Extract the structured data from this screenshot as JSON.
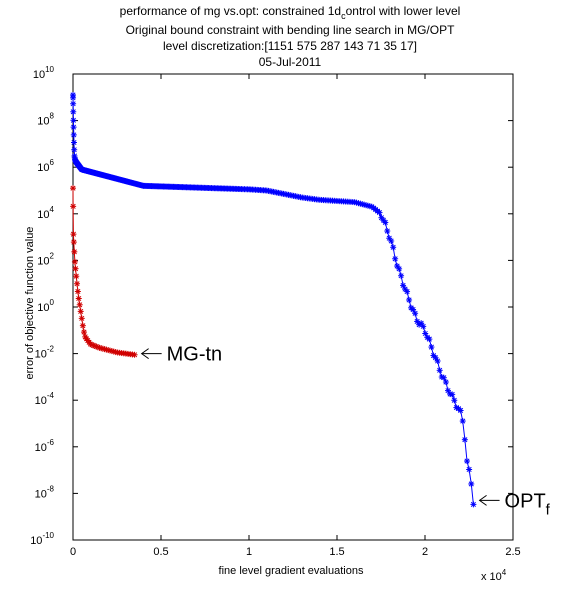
{
  "chart_data": {
    "type": "scatter",
    "title_lines": [
      "performance of mg vs.opt: constrained 1d",
      "Original bound constraint with bending line search in MG/OPT",
      "level discretization:[1151 575 287 143 71 35 17]",
      "05-Jul-2011"
    ],
    "title_sub": "c",
    "title_tail": "ontrol with lower level",
    "xlabel": "fine level gradient evaluations",
    "ylabel": "error of objective function value",
    "x_multiplier": "x 10",
    "x_multiplier_exp": "4",
    "xlim": [
      0,
      25000
    ],
    "ylim_log10": [
      -10,
      10
    ],
    "y_scale": "log",
    "grid": false,
    "x_ticks": [
      {
        "value": 0,
        "label": "0"
      },
      {
        "value": 5000,
        "label": "0.5"
      },
      {
        "value": 10000,
        "label": "1"
      },
      {
        "value": 15000,
        "label": "1.5"
      },
      {
        "value": 20000,
        "label": "2"
      },
      {
        "value": 25000,
        "label": "2.5"
      }
    ],
    "y_ticks": [
      {
        "exp": 10,
        "base": "10",
        "sup": "10"
      },
      {
        "exp": 8,
        "base": "10",
        "sup": "8"
      },
      {
        "exp": 6,
        "base": "10",
        "sup": "6"
      },
      {
        "exp": 4,
        "base": "10",
        "sup": "4"
      },
      {
        "exp": 2,
        "base": "10",
        "sup": "2"
      },
      {
        "exp": 0,
        "base": "10",
        "sup": "0"
      },
      {
        "exp": -2,
        "base": "10",
        "sup": "-2"
      },
      {
        "exp": -4,
        "base": "10",
        "sup": "-4"
      },
      {
        "exp": -6,
        "base": "10",
        "sup": "-6"
      },
      {
        "exp": -8,
        "base": "10",
        "sup": "-8"
      },
      {
        "exp": -10,
        "base": "10",
        "sup": "-10"
      }
    ],
    "series": [
      {
        "color": "#0000ff",
        "marker": "asterisk",
        "line": "solid",
        "x_start": 0,
        "x_end": 22750,
        "points": 300,
        "log10_profile": [
          [
            0,
            9.1
          ],
          [
            20,
            8.1
          ],
          [
            50,
            7.2
          ],
          [
            80,
            6.5
          ],
          [
            120,
            6.3
          ],
          [
            200,
            6.2
          ],
          [
            500,
            5.9
          ],
          [
            1000,
            5.8
          ],
          [
            1500,
            5.7
          ],
          [
            2000,
            5.6
          ],
          [
            2500,
            5.5
          ],
          [
            3000,
            5.4
          ],
          [
            4000,
            5.2
          ],
          [
            6000,
            5.15
          ],
          [
            8000,
            5.1
          ],
          [
            10000,
            5.05
          ],
          [
            11000,
            5.0
          ],
          [
            12000,
            4.85
          ],
          [
            13000,
            4.7
          ],
          [
            14000,
            4.6
          ],
          [
            15000,
            4.55
          ],
          [
            16000,
            4.5
          ],
          [
            17000,
            4.3
          ],
          [
            17500,
            4.0
          ],
          [
            18000,
            3.0
          ],
          [
            18500,
            1.6
          ],
          [
            19000,
            0.5
          ],
          [
            19500,
            -0.5
          ],
          [
            20000,
            -1.0
          ],
          [
            20500,
            -2.0
          ],
          [
            21000,
            -3.0
          ],
          [
            21500,
            -3.8
          ],
          [
            22000,
            -4.5
          ],
          [
            22200,
            -5.0
          ],
          [
            22400,
            -6.8
          ],
          [
            22600,
            -7.3
          ],
          [
            22750,
            -8.4
          ]
        ]
      },
      {
        "color": "#d00000",
        "marker": "asterisk",
        "line": "solid",
        "x_start": 0,
        "x_end": 3500,
        "points": 45,
        "log10_profile": [
          [
            0,
            5.1
          ],
          [
            20,
            3.2
          ],
          [
            100,
            2.0
          ],
          [
            200,
            1.2
          ],
          [
            300,
            0.5
          ],
          [
            400,
            0.0
          ],
          [
            500,
            -0.5
          ],
          [
            600,
            -1.0
          ],
          [
            700,
            -1.3
          ],
          [
            1000,
            -1.6
          ],
          [
            1500,
            -1.75
          ],
          [
            2000,
            -1.85
          ],
          [
            2500,
            -1.95
          ],
          [
            3000,
            -2.0
          ],
          [
            3500,
            -2.05
          ]
        ]
      }
    ],
    "annotations": [
      {
        "text": "MG-tn",
        "sub": "",
        "x": 3900,
        "log10_y": -2.0
      },
      {
        "text": "OPT",
        "sub": "f",
        "x": 23100,
        "log10_y": -8.3
      }
    ]
  }
}
